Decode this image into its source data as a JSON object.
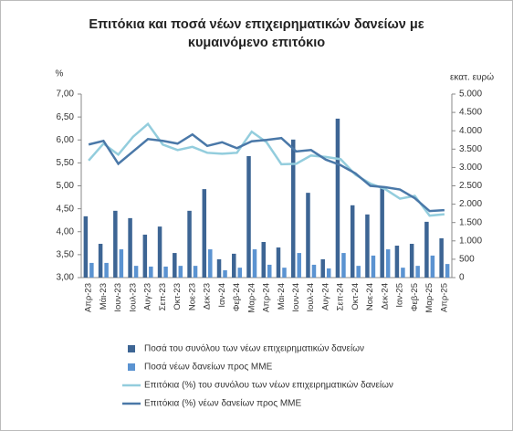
{
  "chart_data": {
    "type": "bar-line",
    "title": "Επιτόκια και ποσά νέων επιχειρηματικών δανείων με κυμαινόμενο επιτόκιο",
    "y_label": "%",
    "y2_label": "εκατ. ευρώ",
    "categories": [
      "Απρ-23",
      "Μάι-23",
      "Ιουν-23",
      "Ιουλ-23",
      "Αυγ-23",
      "Σεπ-23",
      "Οκτ-23",
      "Νοε-23",
      "Δεκ-23",
      "Ιαν-24",
      "Φεβ-24",
      "Μαρ-24",
      "Απρ-24",
      "Μάι-24",
      "Ιουν-24",
      "Ιουλ-24",
      "Αυγ-24",
      "Σεπ-24",
      "Οκτ-24",
      "Νοε-24",
      "Δεκ-24",
      "Ιαν-25",
      "Φεβ-25",
      "Μαρ-25",
      "Απρ-25"
    ],
    "ylim": [
      3,
      7
    ],
    "yticks": [
      {
        "value": 3,
        "label": "3,00"
      },
      {
        "value": 3.5,
        "label": "3,50"
      },
      {
        "value": 4,
        "label": "4,00"
      },
      {
        "value": 4.5,
        "label": "4,50"
      },
      {
        "value": 5,
        "label": "5,00"
      },
      {
        "value": 5.5,
        "label": "5,50"
      },
      {
        "value": 6,
        "label": "6,00"
      },
      {
        "value": 6.5,
        "label": "6,50"
      },
      {
        "value": 7,
        "label": "7,00"
      }
    ],
    "y2lim": [
      0,
      5000
    ],
    "y2ticks": [
      0,
      500,
      {
        "value": 1000,
        "label": "1.000"
      },
      {
        "value": 1500,
        "label": "1.500"
      },
      {
        "value": 2000,
        "label": "2.000"
      },
      {
        "value": 2500,
        "label": "2.500"
      },
      {
        "value": 3000,
        "label": "3.000"
      },
      {
        "value": 3500,
        "label": "3.500"
      },
      {
        "value": 4000,
        "label": "4.000"
      },
      {
        "value": 4500,
        "label": "4.500"
      },
      {
        "value": 5000,
        "label": "5.000"
      }
    ],
    "series": [
      {
        "name": "Ποσά του συνόλου των νέων επιχειρηματικών δανείων",
        "type": "bar",
        "axis": "y2",
        "color": "#3d6594",
        "values": [
          1670,
          920,
          1820,
          1620,
          1170,
          1390,
          670,
          1820,
          2410,
          500,
          650,
          3310,
          970,
          820,
          3760,
          2310,
          500,
          4330,
          1970,
          1720,
          2440,
          870,
          920,
          1520,
          1070
        ]
      },
      {
        "name": "Ποσά νέων δανείων προς ΜΜΕ",
        "type": "bar",
        "axis": "y2",
        "color": "#5b93d1",
        "values": [
          400,
          400,
          770,
          320,
          300,
          300,
          320,
          320,
          770,
          200,
          270,
          770,
          350,
          270,
          670,
          350,
          250,
          670,
          320,
          600,
          770,
          270,
          320,
          600,
          370
        ]
      },
      {
        "name": "Επιτόκια (%) του συνόλου των νέων επιχειρηματικών δανείων",
        "type": "line",
        "color": "#93cddd",
        "values": [
          5.55,
          5.92,
          5.68,
          6.07,
          6.35,
          5.9,
          5.78,
          5.85,
          5.72,
          5.7,
          5.72,
          6.18,
          5.95,
          5.47,
          5.48,
          5.66,
          5.63,
          5.58,
          5.24,
          5.05,
          4.93,
          4.72,
          4.78,
          4.35,
          4.38
        ]
      },
      {
        "name": "Επιτόκια (%) νέων δανείων προς ΜΜΕ",
        "type": "line",
        "color": "#4a78a8",
        "values": [
          5.9,
          5.98,
          5.48,
          5.75,
          6.02,
          5.98,
          5.92,
          6.12,
          5.87,
          5.95,
          5.82,
          5.97,
          6.0,
          6.04,
          5.75,
          5.78,
          5.57,
          5.45,
          5.27,
          5.0,
          4.97,
          4.92,
          4.73,
          4.45,
          4.47
        ]
      }
    ]
  }
}
